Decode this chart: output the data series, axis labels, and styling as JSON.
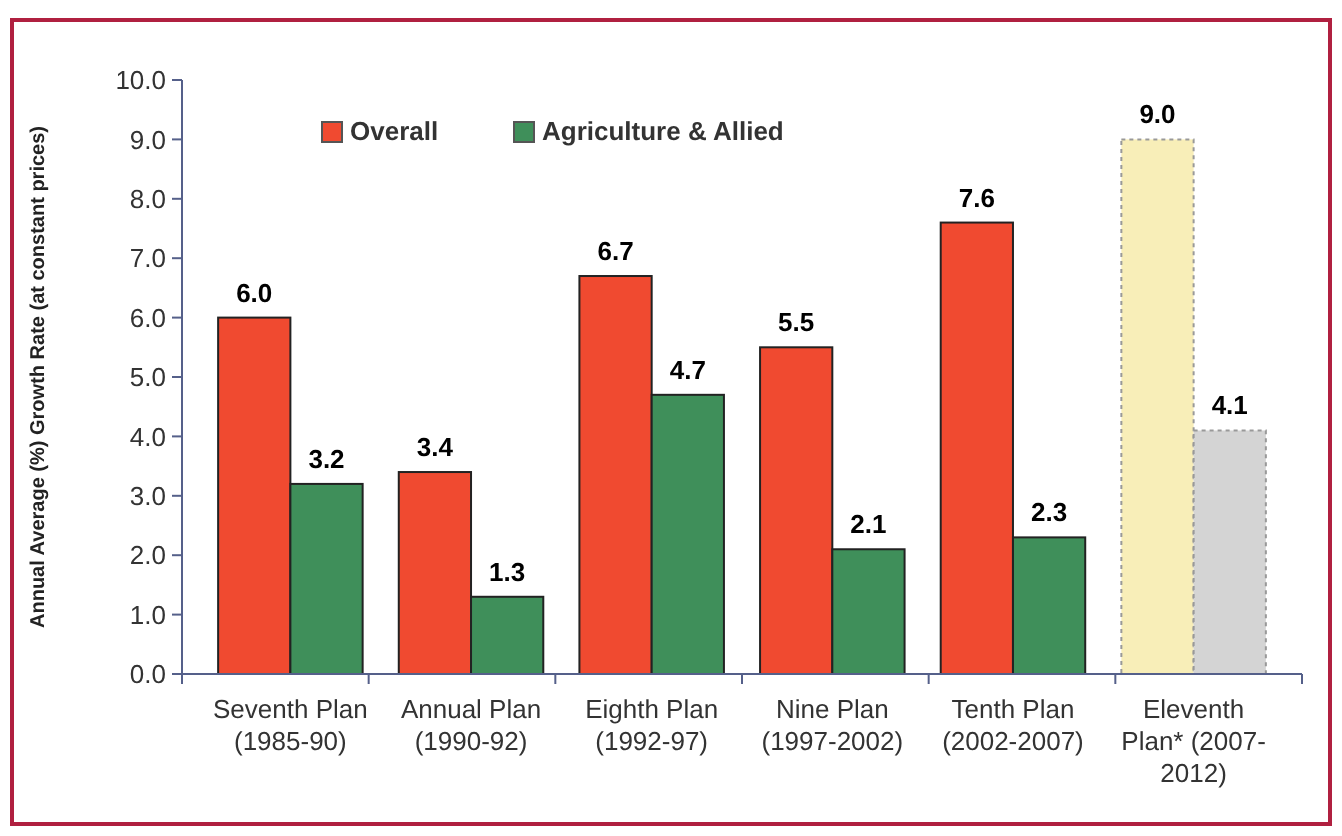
{
  "chart_data": {
    "type": "bar",
    "ylabel": "Annual Average (%) Growth Rate (at constant prices)",
    "categories": [
      "Seventh Plan (1985-90)",
      "Annual Plan (1990-92)",
      "Eighth Plan (1992-97)",
      "Nine Plan (1997-2002)",
      "Tenth Plan (2002-2007)",
      "Eleventh Plan* (2007-2012)"
    ],
    "series": [
      {
        "name": "Overall",
        "color": "#f04a30",
        "colors": [
          "#f04a30",
          "#f04a30",
          "#f04a30",
          "#f04a30",
          "#f04a30",
          "#f8eeb8"
        ],
        "values": [
          6.0,
          3.4,
          6.7,
          5.5,
          7.6,
          9.0
        ],
        "value_labels": [
          "6.0",
          "3.4",
          "6.7",
          "5.5",
          "7.6",
          "9.0"
        ]
      },
      {
        "name": "Agriculture & Allied",
        "color": "#3f8f5a",
        "colors": [
          "#3f8f5a",
          "#3f8f5a",
          "#3f8f5a",
          "#3f8f5a",
          "#3f8f5a",
          "#d4d4d4"
        ],
        "values": [
          3.2,
          1.3,
          4.7,
          2.1,
          2.3,
          4.1
        ],
        "value_labels": [
          "3.2",
          "1.3",
          "4.7",
          "2.1",
          "2.3",
          "4.1"
        ]
      }
    ],
    "ylim": [
      0,
      10
    ],
    "yticks": [
      {
        "value": 0,
        "label": "0.0"
      },
      {
        "value": 1,
        "label": "1.0"
      },
      {
        "value": 2,
        "label": "2.0"
      },
      {
        "value": 3,
        "label": "3.0"
      },
      {
        "value": 4,
        "label": "4.0"
      },
      {
        "value": 5,
        "label": "5.0"
      },
      {
        "value": 6,
        "label": "6.0"
      },
      {
        "value": 7,
        "label": "7.0"
      },
      {
        "value": 8,
        "label": "8.0"
      },
      {
        "value": 9,
        "label": "9.0"
      },
      {
        "value": 10,
        "label": "10.0"
      }
    ],
    "legend": "top",
    "grid": false
  }
}
